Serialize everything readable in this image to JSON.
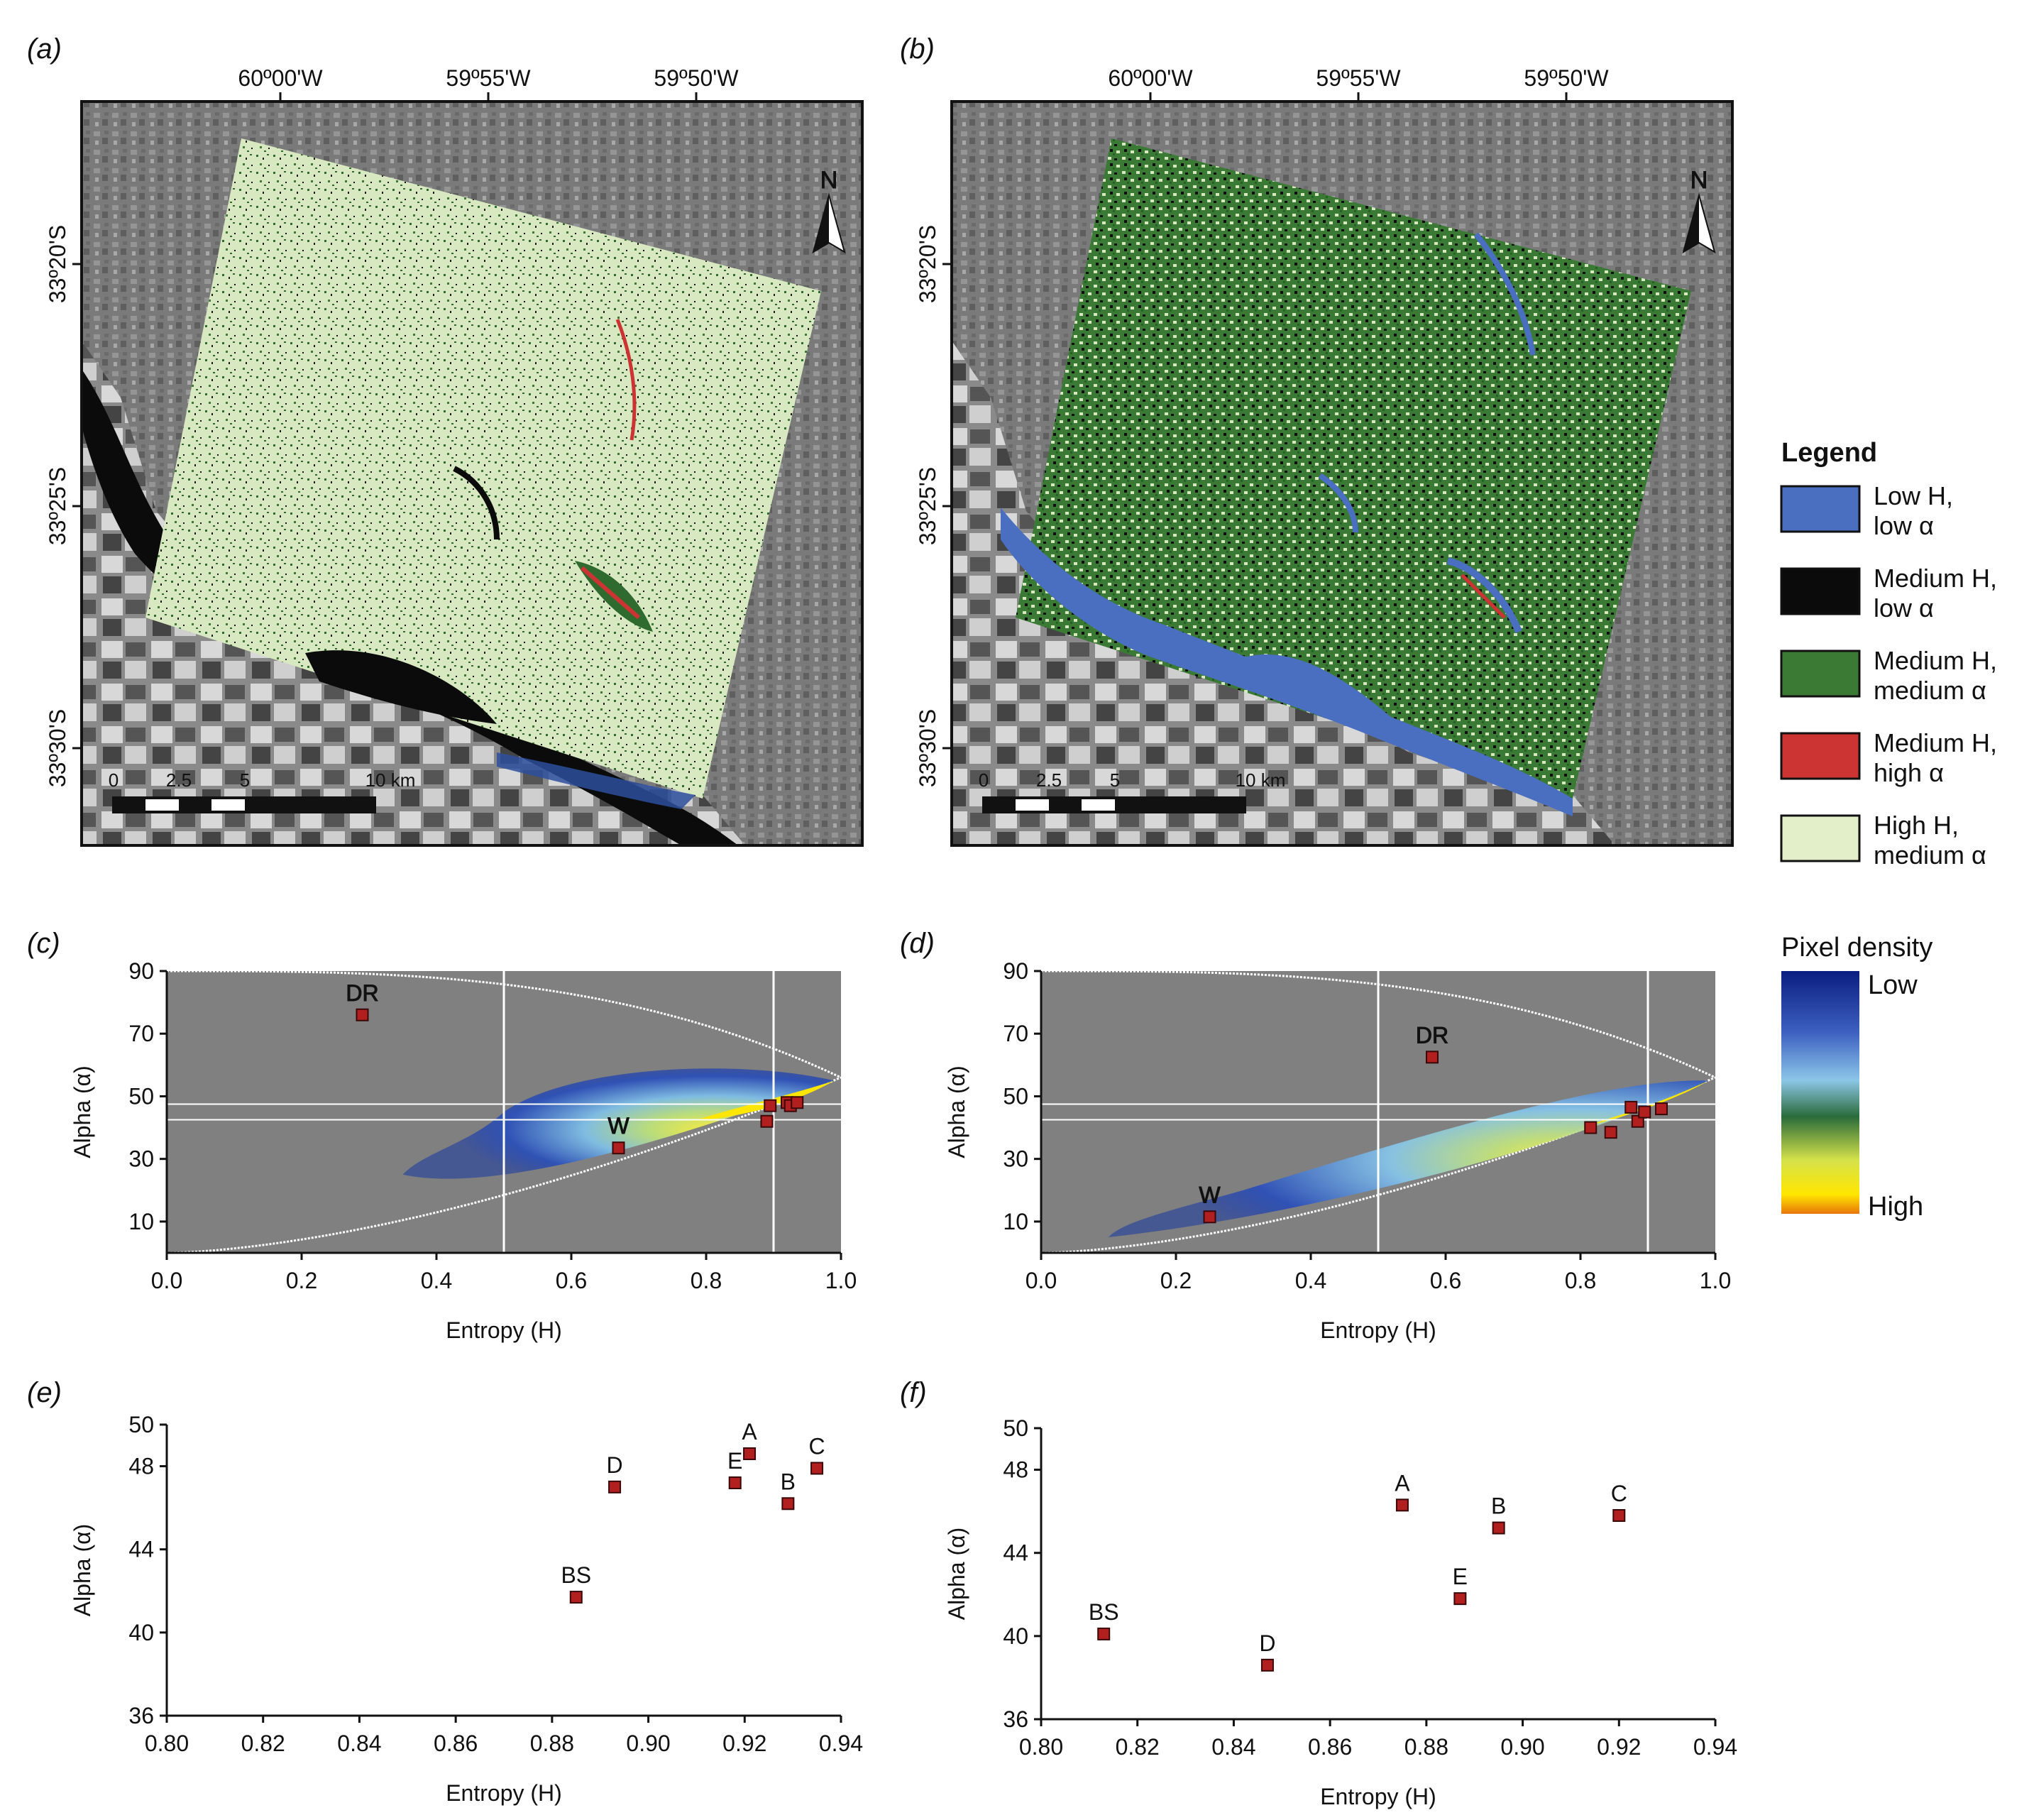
{
  "panel_labels": {
    "a": "(a)",
    "b": "(b)",
    "c": "(c)",
    "d": "(d)",
    "e": "(e)",
    "f": "(f)"
  },
  "map": {
    "lon_ticks": [
      "60º00'W",
      "59º55'W",
      "59º50'W"
    ],
    "lat_ticks": [
      "33º20'S",
      "33º25'S",
      "33º30'S"
    ],
    "north": "N",
    "scale_ticks": [
      "0",
      "2.5",
      "5",
      "10 km"
    ]
  },
  "legend": {
    "title": "Legend",
    "items": [
      {
        "line1": "Low H,",
        "line2": "low α",
        "color": "#4a6fc0"
      },
      {
        "line1": "Medium H,",
        "line2": "low α",
        "color": "#0b0b0b"
      },
      {
        "line1": "Medium H,",
        "line2": "medium α",
        "color": "#3a7a35"
      },
      {
        "line1": "Medium H,",
        "line2": "high α",
        "color": "#cc3333"
      },
      {
        "line1": "High H,",
        "line2": "medium α",
        "color": "#e3efc8"
      }
    ]
  },
  "density_legend": {
    "title": "Pixel density",
    "low": "Low",
    "high": "High"
  },
  "chart_data": [
    {
      "panel": "c",
      "type": "scatter",
      "xlabel": "Entropy (H)",
      "ylabel": "Alpha (α)",
      "xlim": [
        0,
        1
      ],
      "ylim": [
        0,
        90
      ],
      "xticks": [
        "0.0",
        "0.2",
        "0.4",
        "0.6",
        "0.8",
        "1.0"
      ],
      "yticks": [
        "10",
        "30",
        "50",
        "70",
        "90"
      ],
      "zone_lines": {
        "h": [
          0.5,
          0.9
        ],
        "alpha": [
          42.5,
          47.5
        ]
      },
      "points": [
        {
          "label": "DR",
          "x": 0.29,
          "y": 76
        },
        {
          "label": "W",
          "x": 0.67,
          "y": 33.5
        },
        {
          "label": "",
          "x": 0.89,
          "y": 42
        },
        {
          "label": "",
          "x": 0.895,
          "y": 47
        },
        {
          "label": "",
          "x": 0.92,
          "y": 48
        },
        {
          "label": "",
          "x": 0.925,
          "y": 47
        },
        {
          "label": "",
          "x": 0.935,
          "y": 48
        }
      ]
    },
    {
      "panel": "d",
      "type": "scatter",
      "xlabel": "Entropy (H)",
      "ylabel": "Alpha (α)",
      "xlim": [
        0,
        1
      ],
      "ylim": [
        0,
        90
      ],
      "xticks": [
        "0.0",
        "0.2",
        "0.4",
        "0.6",
        "0.8",
        "1.0"
      ],
      "yticks": [
        "10",
        "30",
        "50",
        "70",
        "90"
      ],
      "zone_lines": {
        "h": [
          0.5,
          0.9
        ],
        "alpha": [
          42.5,
          47.5
        ]
      },
      "points": [
        {
          "label": "DR",
          "x": 0.58,
          "y": 62.5
        },
        {
          "label": "W",
          "x": 0.25,
          "y": 11.5
        },
        {
          "label": "",
          "x": 0.815,
          "y": 40
        },
        {
          "label": "",
          "x": 0.845,
          "y": 38.5
        },
        {
          "label": "",
          "x": 0.875,
          "y": 46.5
        },
        {
          "label": "",
          "x": 0.885,
          "y": 42
        },
        {
          "label": "",
          "x": 0.895,
          "y": 45
        },
        {
          "label": "",
          "x": 0.92,
          "y": 46
        }
      ]
    },
    {
      "panel": "e",
      "type": "scatter",
      "xlabel": "Entropy (H)",
      "ylabel": "Alpha (α)",
      "xlim": [
        0.8,
        0.94
      ],
      "ylim": [
        36,
        50
      ],
      "xticks": [
        "0.80",
        "0.82",
        "0.84",
        "0.86",
        "0.88",
        "0.90",
        "0.92",
        "0.94"
      ],
      "yticks": [
        "36",
        "40",
        "44",
        "48",
        "50"
      ],
      "points": [
        {
          "label": "BS",
          "x": 0.885,
          "y": 41.7
        },
        {
          "label": "D",
          "x": 0.893,
          "y": 47
        },
        {
          "label": "E",
          "x": 0.918,
          "y": 47.2
        },
        {
          "label": "A",
          "x": 0.921,
          "y": 48.6
        },
        {
          "label": "B",
          "x": 0.929,
          "y": 46.2
        },
        {
          "label": "C",
          "x": 0.935,
          "y": 47.9
        }
      ]
    },
    {
      "panel": "f",
      "type": "scatter",
      "xlabel": "Entropy (H)",
      "ylabel": "Alpha (α)",
      "xlim": [
        0.8,
        0.94
      ],
      "ylim": [
        36,
        50
      ],
      "xticks": [
        "0.80",
        "0.82",
        "0.84",
        "0.86",
        "0.88",
        "0.90",
        "0.92",
        "0.94"
      ],
      "yticks": [
        "36",
        "40",
        "44",
        "48",
        "50"
      ],
      "points": [
        {
          "label": "BS",
          "x": 0.813,
          "y": 40.1
        },
        {
          "label": "D",
          "x": 0.847,
          "y": 38.6
        },
        {
          "label": "A",
          "x": 0.875,
          "y": 46.3
        },
        {
          "label": "E",
          "x": 0.887,
          "y": 41.8
        },
        {
          "label": "B",
          "x": 0.895,
          "y": 45.2
        },
        {
          "label": "C",
          "x": 0.92,
          "y": 45.8
        }
      ]
    }
  ]
}
